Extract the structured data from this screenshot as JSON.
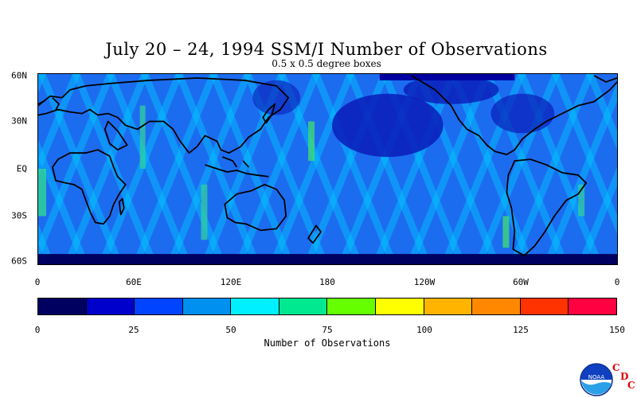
{
  "title": "July 20 – 24, 1994 SSM/I Number of Observations",
  "subtitle": "0.5 x 0.5 degree boxes",
  "lat_labels": [
    "60N",
    "30N",
    "EQ",
    "30S",
    "60S"
  ],
  "lon_labels": [
    "0",
    "60E",
    "120E",
    "180",
    "120W",
    "60W",
    "0"
  ],
  "colorbar": {
    "title": "Number of Observations",
    "tick_labels": [
      "0",
      "25",
      "50",
      "75",
      "100",
      "125",
      "150"
    ],
    "colors": [
      "#000060",
      "#0000cc",
      "#0044ff",
      "#0090f0",
      "#00f0ff",
      "#00e890",
      "#66ff00",
      "#ffff00",
      "#ffb400",
      "#ff8800",
      "#ff3300",
      "#ff0040"
    ],
    "range": [
      0,
      150
    ]
  },
  "logo": {
    "text": "NOAA",
    "letters": [
      "C",
      "D",
      "C"
    ],
    "icon": "noaa-logo-icon"
  }
}
